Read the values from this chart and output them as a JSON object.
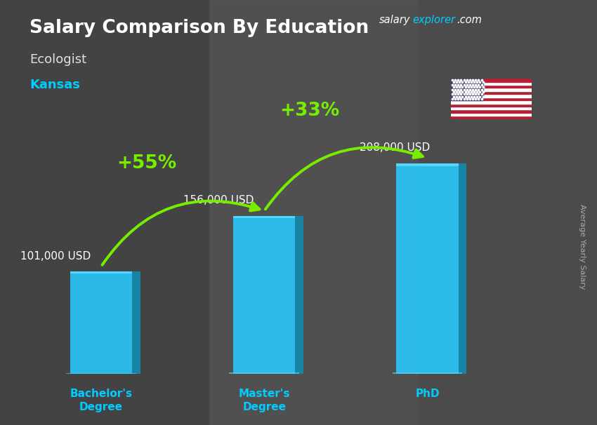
{
  "title": "Salary Comparison By Education",
  "subtitle1": "Ecologist",
  "subtitle2": "Kansas",
  "categories": [
    "Bachelor's\nDegree",
    "Master's\nDegree",
    "PhD"
  ],
  "values": [
    101000,
    156000,
    208000
  ],
  "value_labels": [
    "101,000 USD",
    "156,000 USD",
    "208,000 USD"
  ],
  "bar_color_main": "#29c5f6",
  "bar_color_light": "#55d8ff",
  "bar_color_dark": "#1a9bbf",
  "bar_color_side": "#1488a8",
  "pct_labels": [
    "+55%",
    "+33%"
  ],
  "pct_color": "#77ee00",
  "bg_color": "#5a5a5a",
  "title_color": "#ffffff",
  "subtitle1_color": "#e0e0e0",
  "subtitle2_color": "#00ccff",
  "value_label_color": "#ffffff",
  "xcat_color": "#00ccff",
  "site_salary_color": "#ffffff",
  "site_explorer_color": "#00ccff",
  "site_com_color": "#ffffff",
  "rotated_label": "Average Yearly Salary",
  "rotated_label_color": "#aaaaaa",
  "ylim": [
    0,
    260000
  ],
  "bar_width": 0.38,
  "bar_positions": [
    0.5,
    1.5,
    2.5
  ]
}
